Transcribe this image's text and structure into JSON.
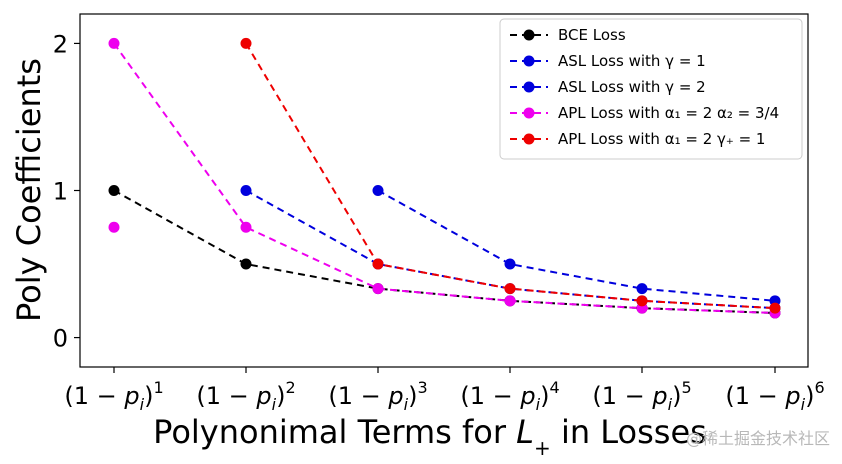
{
  "chart_data": {
    "type": "line",
    "title": "",
    "xlabel": "Polynonimal Terms for L_+ in Losses",
    "ylabel": "Poly Coefficients",
    "categories": [
      "(1 − p_i)^1",
      "(1 − p_i)^2",
      "(1 − p_i)^3",
      "(1 − p_i)^4",
      "(1 − p_i)^5",
      "(1 − p_i)^6"
    ],
    "ylim": [
      -0.2,
      2.2
    ],
    "yticks": [
      0,
      1,
      2
    ],
    "grid": false,
    "legend_position": "top-right",
    "series": [
      {
        "name": "BCE Loss",
        "color": "#000000",
        "values": [
          1,
          0.5,
          0.333,
          0.25,
          0.2,
          0.167
        ]
      },
      {
        "name": "ASL Loss with γ = 1",
        "color": "#0000dd",
        "values": [
          null,
          1,
          0.5,
          0.333,
          0.25,
          0.2
        ]
      },
      {
        "name": "ASL Loss with γ = 2",
        "color": "#0000dd",
        "values": [
          null,
          null,
          1,
          0.5,
          0.333,
          0.25
        ]
      },
      {
        "name": "APL Loss with α₁ = 2 α₂ = 3/4",
        "color": "#ee00ee",
        "values": [
          2,
          0.75,
          0.333,
          0.25,
          0.2,
          0.167
        ]
      },
      {
        "name": "APL Loss with α₁ = 2 γ₊ = 1",
        "color": "#ee0000",
        "values": [
          null,
          2,
          0.5,
          0.333,
          0.25,
          0.2
        ]
      }
    ],
    "extra_points": [
      {
        "series": "APL Loss with α₁ = 2 α₂ = 3/4",
        "category_index": 0,
        "value": 0.75,
        "color": "#ee00ee"
      }
    ]
  },
  "watermark": "@稀土掘金技术社区"
}
